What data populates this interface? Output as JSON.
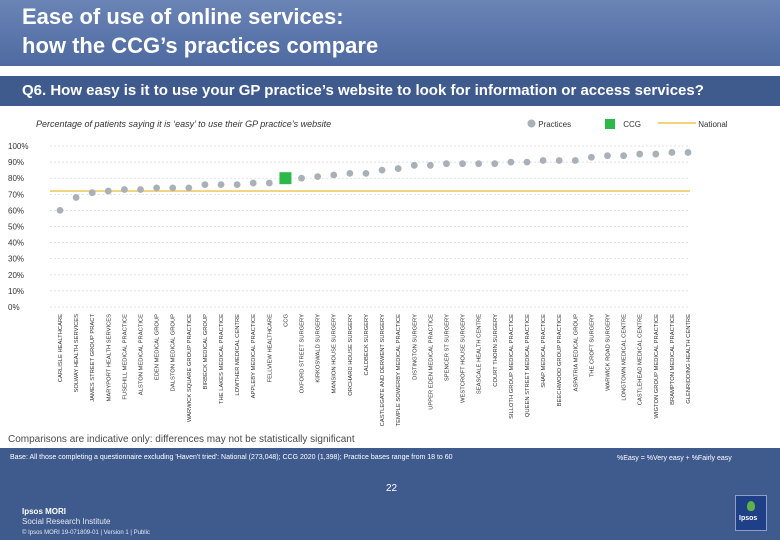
{
  "header": {
    "title_line1": "Ease of use of online services:",
    "title_line2": "how the CCG’s practices compare",
    "question": "Q6. How easy is it to use your GP practice’s website to look for information or access services?"
  },
  "subtitle": "Percentage of patients saying it is ‘easy’ to use their GP practice’s website",
  "legend": {
    "practices": "Practices",
    "ccg": "CCG",
    "national": "National"
  },
  "colors": {
    "practice_marker": "#aab0b8",
    "ccg_marker": "#2db84b",
    "national_line": "#f2d27a",
    "header": "#4e6aa0",
    "band": "#3f5b8e"
  },
  "chart_data": {
    "type": "scatter",
    "ylim": [
      0,
      100
    ],
    "yticks": [
      "0%",
      "10%",
      "20%",
      "30%",
      "40%",
      "50%",
      "60%",
      "70%",
      "80%",
      "90%",
      "100%"
    ],
    "national": 72,
    "ccg_label": "CCG",
    "categories": [
      "CARLISLE HEALTHCARE",
      "SOLWAY HEALTH SERVICES",
      "JAMES STREET GROUP PRACT",
      "MARYPORT HEALTH SERVICES",
      "FUSEHILL MEDICAL PRACTICE",
      "ALSTON MEDICAL PRACTICE",
      "EDEN MEDICAL GROUP",
      "DALSTON MEDICAL GROUP",
      "WARWICK SQUARE GROUP PRACTICE",
      "BIRBECK MEDICAL GROUP",
      "THE LAKES MEDICAL PRACTICE",
      "LOWTHER MEDICAL CENTRE",
      "APPLEBY MEDICAL PRACTICE",
      "FELLVIEW HEALTHCARE",
      "CCG",
      "OXFORD STREET SURGERY",
      "KIRKOSWALD SURGERY",
      "MANSION HOUSE SURGERY",
      "ORCHARD HOUSE SURGERY",
      "CALDBECK SURGERY",
      "CASTLEGATE AND DERWENT SURGERY",
      "TEMPLE SOWERBY MEDICAL PRACTICE",
      "DISTINGTON SURGERY",
      "UPPER EDEN MEDICAL PRACTICE",
      "SPENCER ST SURGERY",
      "WESTCROFT HOUSE SURGERY",
      "SEASCALE HEALTH CENTRE",
      "COURT THORN SURGERY",
      "SILLOTH GROUP MEDICAL PRACTICE",
      "QUEEN STREET MEDICAL PRACTICE",
      "SHAP MEDICAL PRACTICE",
      "BEECHWOOD GROUP PRACTICE",
      "ASPATRIA MEDICAL GROUP",
      "THE CROFT SURGERY",
      "WARWICK ROAD SURGERY",
      "LONGTOWN MEDICAL CENTRE",
      "CASTLEHEAD MEDICAL CENTRE",
      "WIGTON GROUP MEDICAL PRACTICE",
      "BRAMPTON MEDICAL PRACTICE",
      "GLENRIDDING HEALTH CENTRE"
    ],
    "values": [
      60,
      68,
      71,
      72,
      73,
      73,
      74,
      74,
      74,
      76,
      76,
      76,
      77,
      77,
      80,
      80,
      81,
      82,
      83,
      83,
      85,
      86,
      88,
      88,
      89,
      89,
      89,
      89,
      90,
      90,
      91,
      91,
      91,
      93,
      94,
      94,
      95,
      95,
      96,
      96
    ]
  },
  "notes": {
    "comparisons": "Comparisons are indicative only: differences may not be statistically significant",
    "base": "Base: All those completing a questionnaire excluding 'Haven't tried': National (273,048); CCG 2020 (1,398); Practice bases range from 18 to 60",
    "easy_definition": "%Easy = %Very easy + %Fairly easy"
  },
  "footer": {
    "logo_line1": "Ipsos MORI",
    "logo_line2": "Social Research Institute",
    "copyright": "© Ipsos MORI    19-071809-01 | Version 1 | Public",
    "page_number": "22",
    "ipsos_logo": "Ipsos"
  }
}
